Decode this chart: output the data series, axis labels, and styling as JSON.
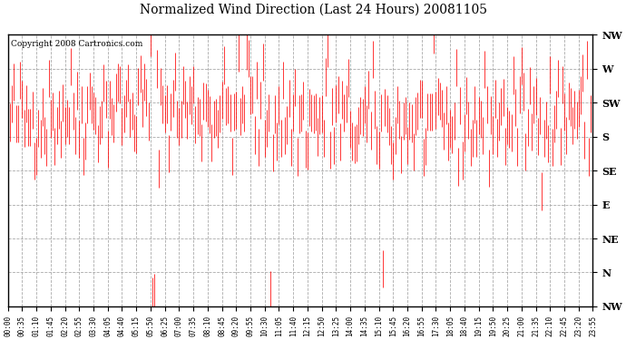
{
  "title": "Normalized Wind Direction (Last 24 Hours) 20081105",
  "copyright_text": "Copyright 2008 Cartronics.com",
  "ytick_labels": [
    "NW",
    "W",
    "SW",
    "S",
    "SE",
    "E",
    "NE",
    "N",
    "NW"
  ],
  "ytick_values": [
    8,
    7,
    6,
    5,
    4,
    3,
    2,
    1,
    0
  ],
  "ylim": [
    0,
    8
  ],
  "line_color": "#ff0000",
  "bg_color": "#ffffff",
  "grid_color": "#aaaaaa",
  "xtick_labels": [
    "00:00",
    "00:35",
    "01:10",
    "01:45",
    "02:20",
    "02:55",
    "03:30",
    "04:05",
    "04:40",
    "05:15",
    "05:50",
    "06:25",
    "07:00",
    "07:35",
    "08:10",
    "08:45",
    "09:20",
    "09:55",
    "10:30",
    "11:05",
    "11:40",
    "12:15",
    "12:50",
    "13:25",
    "14:00",
    "14:35",
    "15:10",
    "15:45",
    "16:20",
    "16:55",
    "17:30",
    "18:05",
    "18:40",
    "19:15",
    "19:50",
    "20:25",
    "21:00",
    "21:35",
    "22:10",
    "22:45",
    "23:20",
    "23:55"
  ],
  "num_points": 288,
  "seed": 42,
  "figwidth": 6.9,
  "figheight": 3.75,
  "dpi": 100
}
